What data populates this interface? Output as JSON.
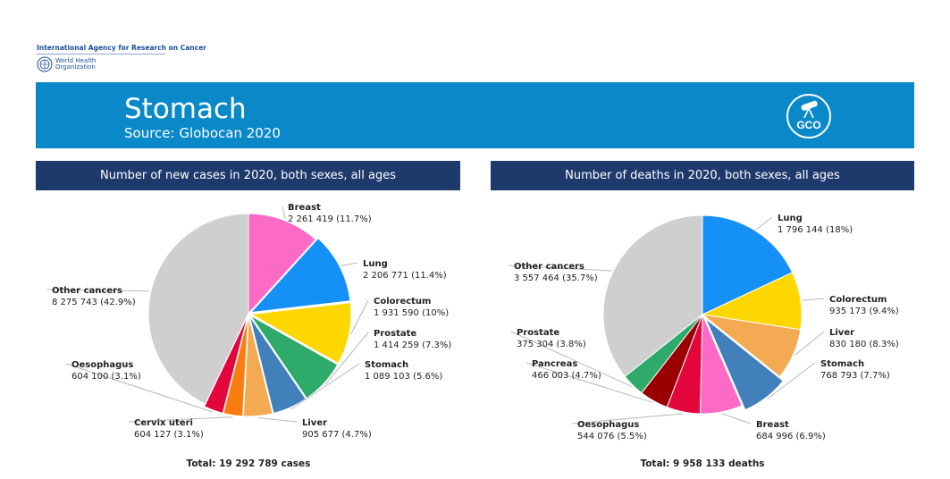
{
  "header": {
    "org_name": "International Agency for Research on Cancer",
    "who_line1": "World Health",
    "who_line2": "Organization",
    "title": "Stomach",
    "subtitle": "Source: Globocan 2020",
    "logo_text": "GCO"
  },
  "colors": {
    "banner": "#0a89c8",
    "panel_header": "#1e3a6d"
  },
  "chart_data": [
    {
      "type": "pie",
      "title": "Number of new cases in 2020, both sexes, all ages",
      "total_label": "Total: 19 292 789 cases",
      "slices": [
        {
          "name": "Breast",
          "value": 2261419,
          "label": "2 261 419 (11.7%)",
          "color": "#fb6bc6"
        },
        {
          "name": "Lung",
          "value": 2206771,
          "label": "2 206 771 (11.4%)",
          "color": "#1590f6"
        },
        {
          "name": "Colorectum",
          "value": 1931590,
          "label": "1 931 590 (10%)",
          "color": "#fed600"
        },
        {
          "name": "Prostate",
          "value": 1414259,
          "label": "1 414 259 (7.3%)",
          "color": "#2eaa6a"
        },
        {
          "name": "Stomach",
          "value": 1089103,
          "label": "1 089 103 (5.6%)",
          "color": "#4180bb"
        },
        {
          "name": "Liver",
          "value": 905677,
          "label": "905 677 (4.7%)",
          "color": "#f4aa53"
        },
        {
          "name": "Cervix uteri",
          "value": 604127,
          "label": "604 127 (3.1%)",
          "color": "#fb7d0f"
        },
        {
          "name": "Oesophagus",
          "value": 604100,
          "label": "604 100 (3.1%)",
          "color": "#e2063d"
        },
        {
          "name": "Other cancers",
          "value": 8275743,
          "label": "8 275 743 (42.9%)",
          "color": "#cfcfcf"
        }
      ]
    },
    {
      "type": "pie",
      "title": "Number of deaths in 2020, both sexes, all ages",
      "total_label": "Total: 9 958 133 deaths",
      "slices": [
        {
          "name": "Lung",
          "value": 1796144,
          "label": "1 796 144 (18%)",
          "color": "#1590f6"
        },
        {
          "name": "Colorectum",
          "value": 935173,
          "label": "935 173 (9.4%)",
          "color": "#fed600"
        },
        {
          "name": "Liver",
          "value": 830180,
          "label": "830 180 (8.3%)",
          "color": "#f4aa53"
        },
        {
          "name": "Stomach",
          "value": 768793,
          "label": "768 793 (7.7%)",
          "color": "#4180bb"
        },
        {
          "name": "Breast",
          "value": 684996,
          "label": "684 996 (6.9%)",
          "color": "#fb6bc6"
        },
        {
          "name": "Oesophagus",
          "value": 544076,
          "label": "544 076 (5.5%)",
          "color": "#e2063d"
        },
        {
          "name": "Pancreas",
          "value": 466003,
          "label": "466 003 (4.7%)",
          "color": "#9b0000"
        },
        {
          "name": "Prostate",
          "value": 375304,
          "label": "375 304 (3.8%)",
          "color": "#2eaa6a"
        },
        {
          "name": "Other cancers",
          "value": 3557464,
          "label": "3 557 464 (35.7%)",
          "color": "#cfcfcf"
        }
      ]
    }
  ]
}
